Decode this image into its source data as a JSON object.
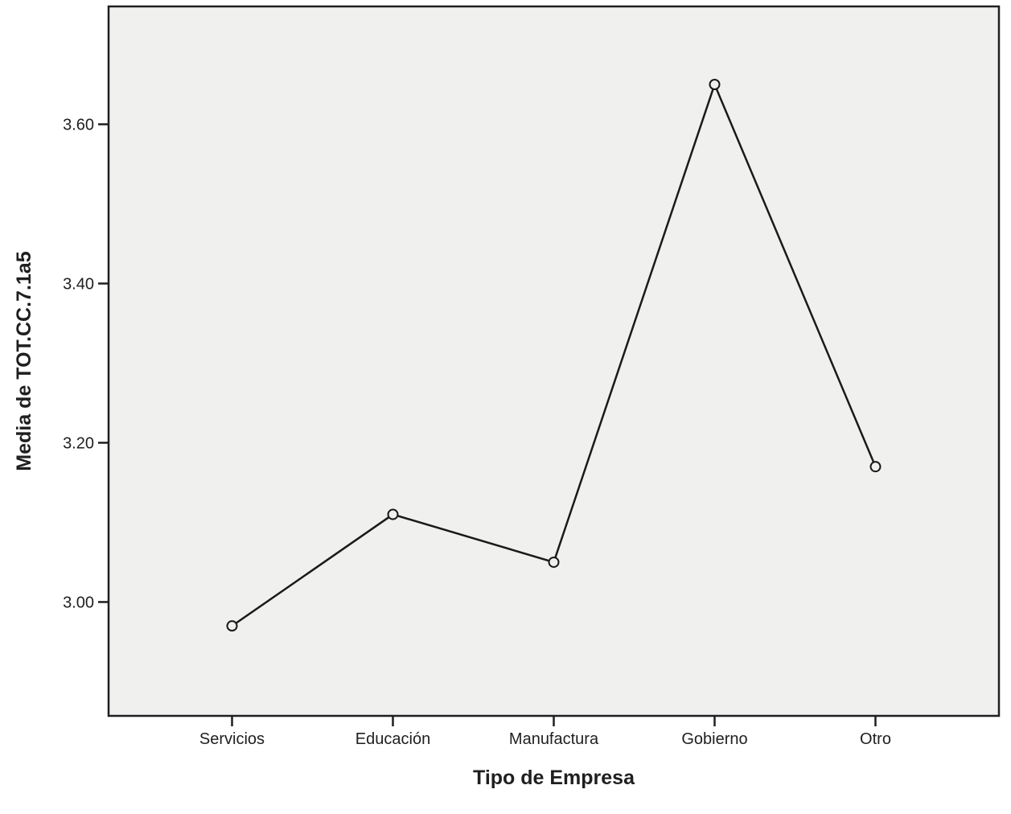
{
  "chart_data": {
    "type": "line",
    "title": "",
    "categories": [
      "Servicios",
      "Educación",
      "Manufactura",
      "Gobierno",
      "Otro"
    ],
    "values": [
      2.97,
      3.11,
      3.05,
      3.65,
      3.17
    ],
    "xlabel": "Tipo de Empresa",
    "ylabel": "Media de TOT.CC.7.1a5",
    "yticks": [
      3.0,
      3.2,
      3.4,
      3.6
    ],
    "ytick_labels": [
      "3.00",
      "3.20",
      "3.40",
      "3.60"
    ],
    "ylim": [
      2.857,
      3.748
    ],
    "grid": false,
    "legend_position": "none",
    "marker": "open-circle",
    "colors": {
      "line": "#1a1a1a",
      "marker_stroke": "#1a1a1a",
      "marker_fill": "#f0f0ef",
      "panel": "#f0f0ef",
      "frame": "#1f1f1f",
      "text": "#1f1f1f",
      "background": "#ffffff"
    }
  }
}
